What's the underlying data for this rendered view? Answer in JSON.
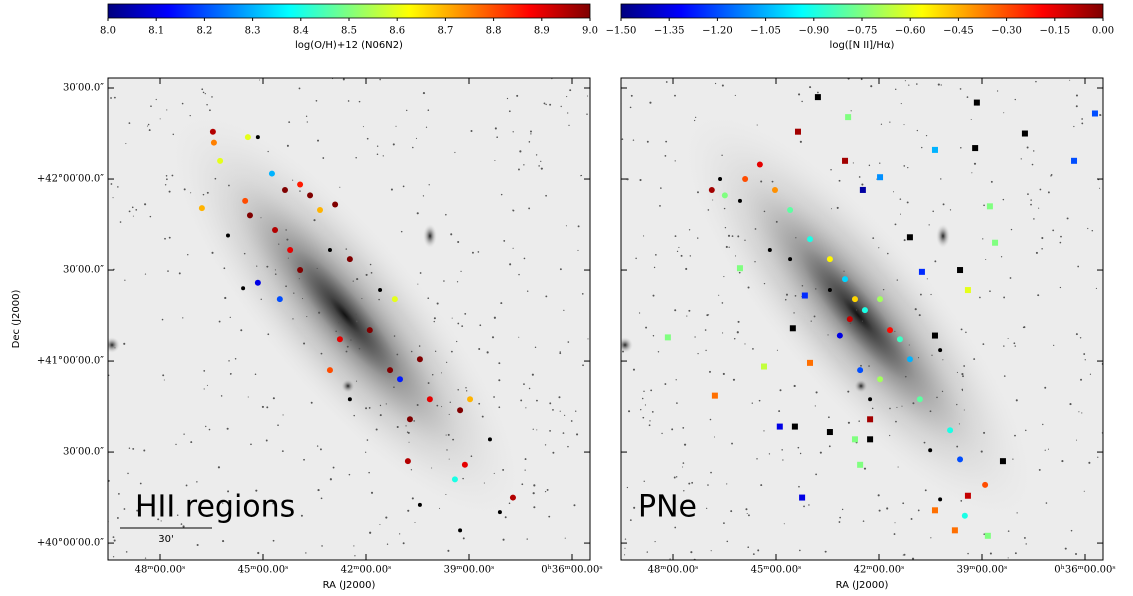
{
  "chart_data": [
    {
      "type": "scatter",
      "xlabel": "RA (J2000)",
      "ylabel": "Dec (J2000)",
      "annotation": "HII regions",
      "scalebar_label": "30'",
      "xlim": [
        49.515,
        35.476
      ],
      "ylim": [
        39.907,
        42.555
      ],
      "xticks": [
        {
          "value": 48,
          "label": "48ᵐ00.00ˢ"
        },
        {
          "value": 45,
          "label": "45ᵐ00.00ˢ"
        },
        {
          "value": 42,
          "label": "42ᵐ00.00ˢ"
        },
        {
          "value": 39,
          "label": "39ᵐ00.00ˢ"
        },
        {
          "value": 36,
          "label": "0ʰ36ᵐ00.00ˢ"
        }
      ],
      "yticks": [
        {
          "value": 42.5,
          "label": "30′00.0″"
        },
        {
          "value": 42,
          "label": "+42°00′00.0″"
        },
        {
          "value": 41.5,
          "label": "30′00.0″"
        },
        {
          "value": 41,
          "label": "+41°00′00.0″"
        },
        {
          "value": 40.5,
          "label": "30′00.0″"
        },
        {
          "value": 40,
          "label": "+40°00′00.0″"
        }
      ],
      "colorbar": {
        "label": "log(O/H)+12 (N06N2)",
        "lim": [
          8.0,
          9.0
        ],
        "ticks": [
          {
            "value": 8.0,
            "label": "8.0"
          },
          8.1,
          8.2,
          8.3,
          8.4,
          8.5,
          8.6,
          8.7,
          8.8,
          8.9,
          {
            "value": 9.0,
            "label": "9.0"
          }
        ]
      },
      "series": [
        {
          "marker": "circle",
          "x": [
            46.46,
            46.43,
            46.25,
            45.44,
            45.15,
            45.52,
            45.38,
            44.74,
            44.36,
            43.92,
            43.63,
            43.34,
            42.9,
            44.65,
            44.21,
            43.92,
            45.15,
            44.51,
            45.58,
            43.05,
            42.47,
            41.59,
            41.16,
            41.89,
            43.05,
            41.3,
            41.01,
            40.43,
            40.14,
            40.72,
            39.26,
            38.97,
            38.39,
            39.12,
            39.41,
            40.43,
            39.26,
            38.1,
            37.72,
            40.78,
            46.02,
            46.78,
            42.47,
            42.76
          ],
          "y": [
            42.26,
            42.2,
            42.1,
            42.23,
            42.23,
            41.88,
            41.8,
            42.03,
            41.94,
            41.97,
            41.91,
            41.83,
            41.86,
            41.72,
            41.61,
            41.5,
            41.43,
            41.34,
            41.4,
            41.61,
            41.56,
            41.39,
            41.34,
            41.17,
            40.95,
            40.95,
            40.9,
            41.01,
            40.79,
            40.68,
            40.73,
            40.79,
            40.57,
            40.43,
            40.35,
            40.21,
            40.07,
            40.17,
            40.25,
            40.45,
            41.69,
            41.84,
            40.79,
            41.12
          ],
          "values": [
            8.95,
            8.75,
            8.6,
            8.6,
            null,
            8.8,
            9.0,
            8.3,
            9.0,
            8.85,
            9.0,
            8.7,
            9.0,
            8.95,
            8.9,
            9.0,
            8.1,
            8.2,
            null,
            null,
            9.0,
            null,
            8.6,
            9.0,
            8.8,
            9.0,
            8.15,
            9.0,
            8.9,
            9.0,
            9.0,
            8.7,
            null,
            8.9,
            8.4,
            null,
            null,
            null,
            8.95,
            8.95,
            null,
            8.7,
            null,
            8.9
          ]
        }
      ]
    },
    {
      "type": "scatter",
      "xlabel": "RA (J2000)",
      "annotation": "PNe",
      "xlim": [
        49.515,
        35.476
      ],
      "ylim": [
        39.907,
        42.555
      ],
      "xticks": [
        {
          "value": 48,
          "label": "48ᵐ00.00ˢ"
        },
        {
          "value": 45,
          "label": "45ᵐ00.00ˢ"
        },
        {
          "value": 42,
          "label": "42ᵐ00.00ˢ"
        },
        {
          "value": 39,
          "label": "39ᵐ00.00ˢ"
        },
        {
          "value": 36,
          "label": "0ʰ36ᵐ00.00ˢ"
        }
      ],
      "colorbar": {
        "label": "log([N II]/Hα)",
        "lim": [
          -1.5,
          0.0
        ],
        "ticks": [
          {
            "value": -1.5,
            "label": "−1.50"
          },
          {
            "value": -1.35,
            "label": "−1.35"
          },
          {
            "value": -1.2,
            "label": "−1.20"
          },
          {
            "value": -1.05,
            "label": "−1.05"
          },
          {
            "value": -0.9,
            "label": "−0.90"
          },
          {
            "value": -0.75,
            "label": "−0.75"
          },
          {
            "value": -0.6,
            "label": "−0.60"
          },
          {
            "value": -0.45,
            "label": "−0.45"
          },
          {
            "value": -0.3,
            "label": "−0.30"
          },
          {
            "value": -0.15,
            "label": "−0.15"
          },
          {
            "value": 0.0,
            "label": "0.00"
          }
        ]
      },
      "series": [
        {
          "marker": "circle",
          "x": [
            46.87,
            46.49,
            45.9,
            45.47,
            45.03,
            44.59,
            44.01,
            43.43,
            42.99,
            42.7,
            42.41,
            41.97,
            41.68,
            41.39,
            43.14,
            42.55,
            41.97,
            41.1,
            40.81,
            39.93,
            39.64,
            38.91,
            39.5,
            42.85,
            46.63,
            46.05,
            44.59,
            43.43,
            42.26,
            40.51,
            40.22,
            40.22,
            45.18
          ],
          "y": [
            41.94,
            41.91,
            42.0,
            42.08,
            41.94,
            41.83,
            41.67,
            41.56,
            41.45,
            41.34,
            41.28,
            41.34,
            41.17,
            41.12,
            41.14,
            40.95,
            40.9,
            41.01,
            40.79,
            40.62,
            40.46,
            40.32,
            40.15,
            41.23,
            42.0,
            41.88,
            41.56,
            41.39,
            40.79,
            40.51,
            40.24,
            41.06,
            41.61
          ],
          "values": [
            -0.05,
            -0.75,
            -0.3,
            -0.15,
            -0.4,
            -0.8,
            -0.9,
            -0.55,
            -1.0,
            -0.5,
            -0.9,
            -0.7,
            -0.2,
            -0.85,
            -1.35,
            -1.2,
            -0.7,
            -1.05,
            -0.8,
            -0.9,
            -1.2,
            -0.3,
            -0.9,
            -0.1,
            null,
            null,
            null,
            null,
            null,
            null,
            null,
            null,
            null
          ]
        },
        {
          "marker": "square",
          "x": [
            43.78,
            44.36,
            42.9,
            42.99,
            42.47,
            41.97,
            40.37,
            39.2,
            39.15,
            37.75,
            36.32,
            35.71,
            38.62,
            38.77,
            41.1,
            39.64,
            39.41,
            40.75,
            46.05,
            44.16,
            44.51,
            48.15,
            45.35,
            44.01,
            46.78,
            44.89,
            44.45,
            43.43,
            42.7,
            42.55,
            42.26,
            44.24,
            42.26,
            40.37,
            40.37,
            39.79,
            38.39,
            38.83,
            39.41
          ],
          "y": [
            42.45,
            42.26,
            42.34,
            42.1,
            41.94,
            42.01,
            42.16,
            42.17,
            42.42,
            42.25,
            42.1,
            42.36,
            41.65,
            41.85,
            41.68,
            41.5,
            41.39,
            41.49,
            41.51,
            41.36,
            41.18,
            41.13,
            40.97,
            40.99,
            40.81,
            40.64,
            40.64,
            40.61,
            40.57,
            40.43,
            40.57,
            40.25,
            40.68,
            41.14,
            40.18,
            40.07,
            40.45,
            40.04,
            40.26
          ],
          "values": [
            null,
            -0.05,
            -0.75,
            -0.05,
            -1.45,
            -1.1,
            -1.05,
            null,
            null,
            null,
            -1.2,
            -1.2,
            -0.75,
            -0.75,
            null,
            null,
            -0.6,
            -1.25,
            -0.75,
            -1.25,
            null,
            -0.75,
            -0.65,
            -0.35,
            -0.35,
            -1.35,
            null,
            null,
            -0.75,
            -0.75,
            null,
            -1.35,
            -0.05,
            null,
            -0.35,
            -0.35,
            null,
            -0.75,
            -0.1
          ]
        }
      ]
    }
  ]
}
